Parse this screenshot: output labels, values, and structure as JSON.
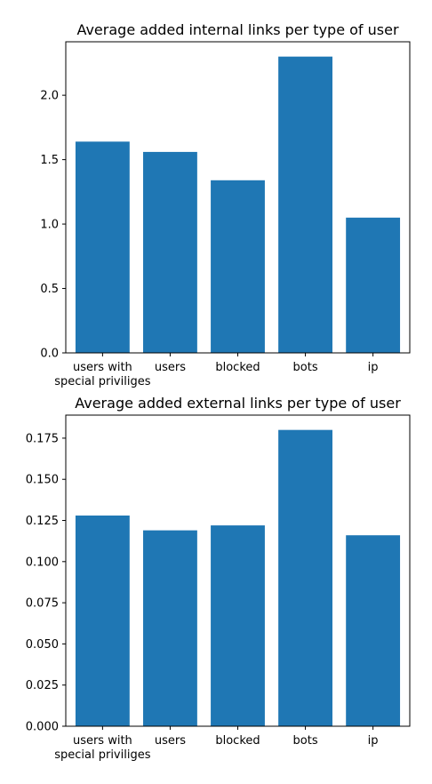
{
  "chart_data": [
    {
      "type": "bar",
      "title": "Average added internal links per type of user",
      "categories": [
        "users with\nspecial priviliges",
        "users",
        "blocked",
        "bots",
        "ip"
      ],
      "values": [
        1.64,
        1.56,
        1.34,
        2.3,
        1.05
      ],
      "ylim": [
        0,
        2.415
      ],
      "yticks": [
        0,
        0.5,
        1.0,
        1.5,
        2.0
      ],
      "ytick_labels": [
        "0.0",
        "0.5",
        "1.0",
        "1.5",
        "2.0"
      ],
      "color": "#1f77b4",
      "xlabel": "",
      "ylabel": ""
    },
    {
      "type": "bar",
      "title": "Average added external links per type of user",
      "categories": [
        "users with\nspecial priviliges",
        "users",
        "blocked",
        "bots",
        "ip"
      ],
      "values": [
        0.128,
        0.119,
        0.122,
        0.18,
        0.116
      ],
      "ylim": [
        0,
        0.189
      ],
      "yticks": [
        0,
        0.025,
        0.05,
        0.075,
        0.1,
        0.125,
        0.15,
        0.175
      ],
      "ytick_labels": [
        "0.000",
        "0.025",
        "0.050",
        "0.075",
        "0.100",
        "0.125",
        "0.150",
        "0.175"
      ],
      "color": "#1f77b4",
      "xlabel": "",
      "ylabel": ""
    }
  ]
}
